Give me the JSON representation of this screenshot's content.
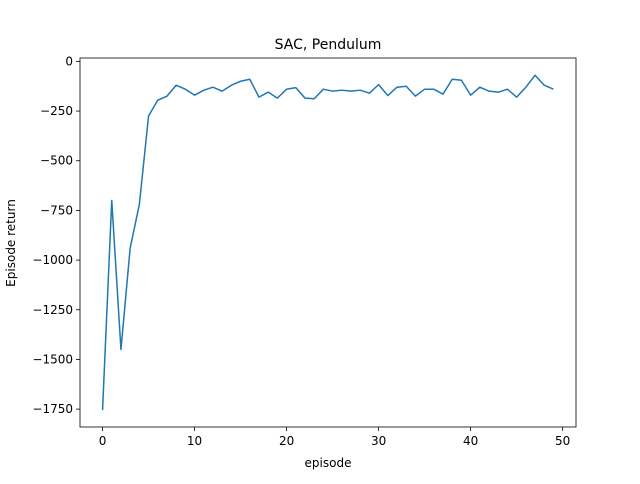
{
  "chart_data": {
    "type": "line",
    "title": "SAC, Pendulum",
    "xlabel": "episode",
    "ylabel": "Episode return",
    "xlim": [
      -2.45,
      51.45
    ],
    "ylim": [
      -1840,
      17
    ],
    "xticks": [
      0,
      10,
      20,
      30,
      40,
      50
    ],
    "yticks": [
      0,
      -250,
      -500,
      -750,
      -1000,
      -1250,
      -1500,
      -1750
    ],
    "xtick_labels": [
      "0",
      "10",
      "20",
      "30",
      "40",
      "50"
    ],
    "ytick_labels": [
      "0",
      "−250",
      "−500",
      "−750",
      "−1000",
      "−1250",
      "−1500",
      "−1750"
    ],
    "grid": false,
    "series": [
      {
        "color": "#1f77b4",
        "x": [
          0,
          1,
          2,
          3,
          4,
          5,
          6,
          7,
          8,
          9,
          10,
          11,
          12,
          13,
          14,
          15,
          16,
          17,
          18,
          19,
          20,
          21,
          22,
          23,
          24,
          25,
          26,
          27,
          28,
          29,
          30,
          31,
          32,
          33,
          34,
          35,
          36,
          37,
          38,
          39,
          40,
          41,
          42,
          43,
          44,
          45,
          46,
          47,
          48,
          49
        ],
        "y": [
          -1755,
          -700,
          -1450,
          -940,
          -720,
          -275,
          -195,
          -175,
          -120,
          -140,
          -170,
          -145,
          -130,
          -150,
          -120,
          -100,
          -90,
          -180,
          -155,
          -185,
          -140,
          -132,
          -185,
          -188,
          -140,
          -150,
          -145,
          -150,
          -145,
          -160,
          -117,
          -172,
          -130,
          -125,
          -175,
          -140,
          -140,
          -165,
          -90,
          -95,
          -170,
          -130,
          -150,
          -155,
          -140,
          -180,
          -130,
          -70,
          -120,
          -140
        ]
      }
    ]
  }
}
